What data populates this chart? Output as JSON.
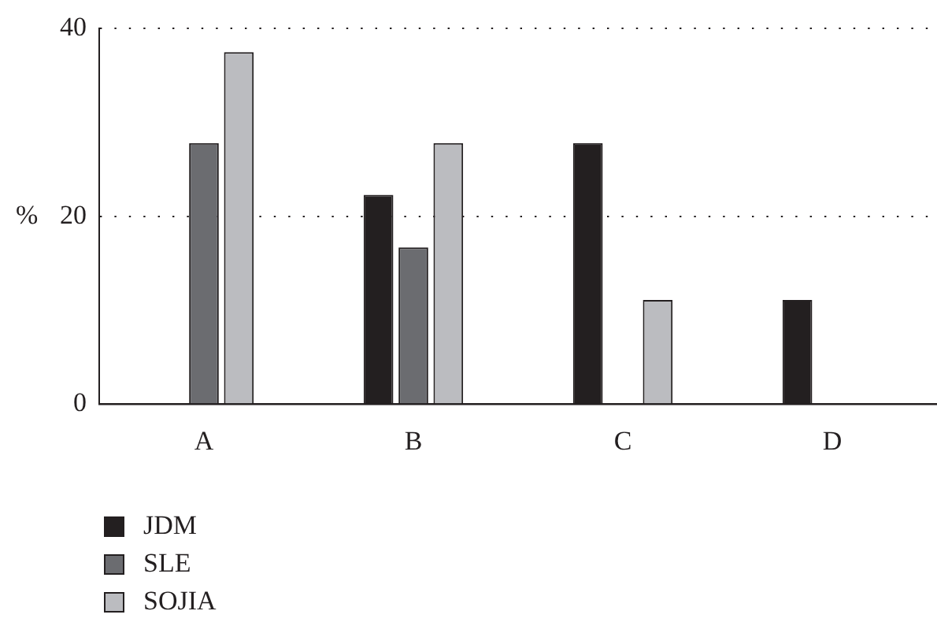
{
  "chart_data": {
    "type": "bar",
    "ylabel": "%",
    "categories": [
      "A",
      "B",
      "C",
      "D"
    ],
    "series": [
      {
        "name": "JDM",
        "color": "#231f20",
        "values": [
          null,
          22.3,
          27.8,
          11.1
        ]
      },
      {
        "name": "SLE",
        "color": "#6b6c70",
        "values": [
          27.8,
          16.7,
          null,
          null
        ]
      },
      {
        "name": "SOJIA",
        "color": "#bbbcc0",
        "values": [
          37.5,
          27.8,
          11.1,
          null
        ]
      }
    ],
    "ylim": [
      0,
      40
    ],
    "yticks": [
      0,
      20,
      40
    ],
    "grid": "y",
    "legend": "bottom left"
  }
}
